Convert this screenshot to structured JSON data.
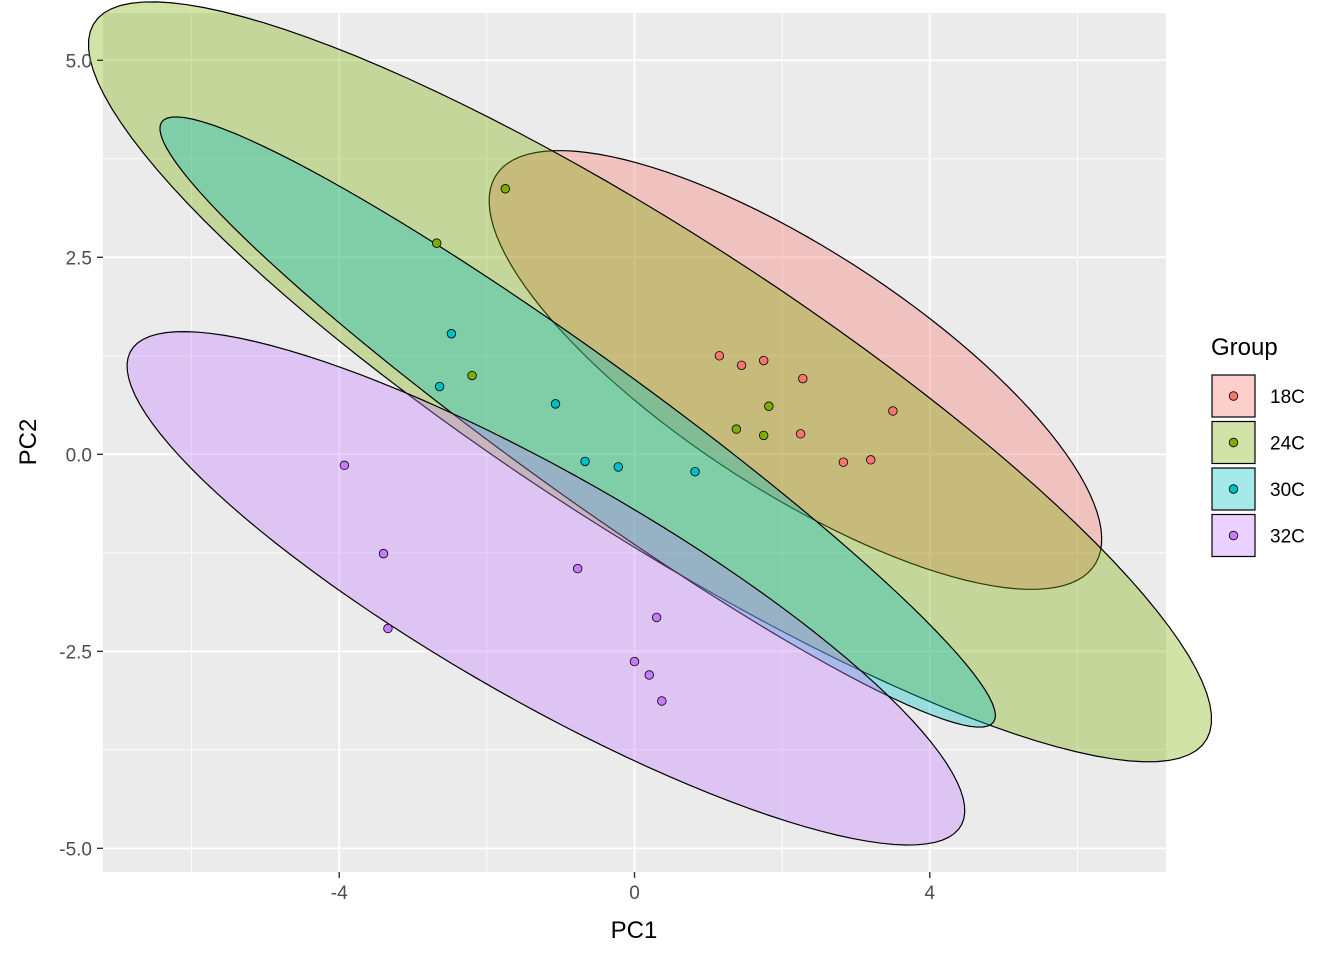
{
  "chart_data": {
    "type": "scatter",
    "title": "",
    "xlabel": "PC1",
    "ylabel": "PC2",
    "xlim": [
      -7.2,
      7.2
    ],
    "ylim": [
      -5.3,
      5.6
    ],
    "x_ticks": [
      -4,
      0,
      4
    ],
    "x_tick_labels": [
      "-4",
      "0",
      "4"
    ],
    "y_ticks": [
      -5,
      -2.5,
      0,
      2.5,
      5
    ],
    "y_tick_labels": [
      "-5.0",
      "-2.5",
      "0.0",
      "2.5",
      "5.0"
    ],
    "grid": true,
    "legend": {
      "title": "Group",
      "position": "right"
    },
    "series": [
      {
        "name": "18C",
        "color": "#F8766D",
        "points": [
          [
            1.15,
            1.25
          ],
          [
            1.45,
            1.13
          ],
          [
            1.75,
            1.19
          ],
          [
            2.28,
            0.96
          ],
          [
            3.5,
            0.55
          ],
          [
            2.25,
            0.26
          ],
          [
            2.83,
            -0.1
          ],
          [
            3.2,
            -0.07
          ]
        ],
        "ellipse": {
          "center": [
            2.18,
            1.07
          ],
          "semi_major": 4.75,
          "semi_minor": 1.55,
          "angle_deg": -31
        }
      },
      {
        "name": "24C",
        "color": "#7CAE00",
        "points": [
          [
            -1.75,
            3.37
          ],
          [
            -2.68,
            2.68
          ],
          [
            -2.2,
            1.0
          ],
          [
            1.82,
            0.61
          ],
          [
            1.38,
            0.32
          ],
          [
            1.75,
            0.24
          ]
        ],
        "ellipse": {
          "center": [
            0.21,
            0.92
          ],
          "semi_major": 8.8,
          "semi_minor": 1.92,
          "angle_deg": -31
        }
      },
      {
        "name": "30C",
        "color": "#00BFC4",
        "points": [
          [
            -2.48,
            1.53
          ],
          [
            -2.64,
            0.86
          ],
          [
            -1.07,
            0.64
          ],
          [
            -0.67,
            -0.09
          ],
          [
            -0.22,
            -0.16
          ],
          [
            0.82,
            -0.22
          ]
        ],
        "ellipse": {
          "center": [
            -0.77,
            0.41
          ],
          "semi_major": 6.8,
          "semi_minor": 0.88,
          "angle_deg": -34
        }
      },
      {
        "name": "32C",
        "color": "#C77CFF",
        "points": [
          [
            -3.93,
            -0.14
          ],
          [
            -3.4,
            -1.26
          ],
          [
            -3.34,
            -2.21
          ],
          [
            -0.77,
            -1.45
          ],
          [
            0.3,
            -2.07
          ],
          [
            0.0,
            -2.63
          ],
          [
            0.2,
            -2.8
          ],
          [
            0.37,
            -3.13
          ]
        ],
        "ellipse": {
          "center": [
            -1.2,
            -1.7
          ],
          "semi_major": 6.38,
          "semi_minor": 1.45,
          "angle_deg": -28
        }
      }
    ]
  }
}
